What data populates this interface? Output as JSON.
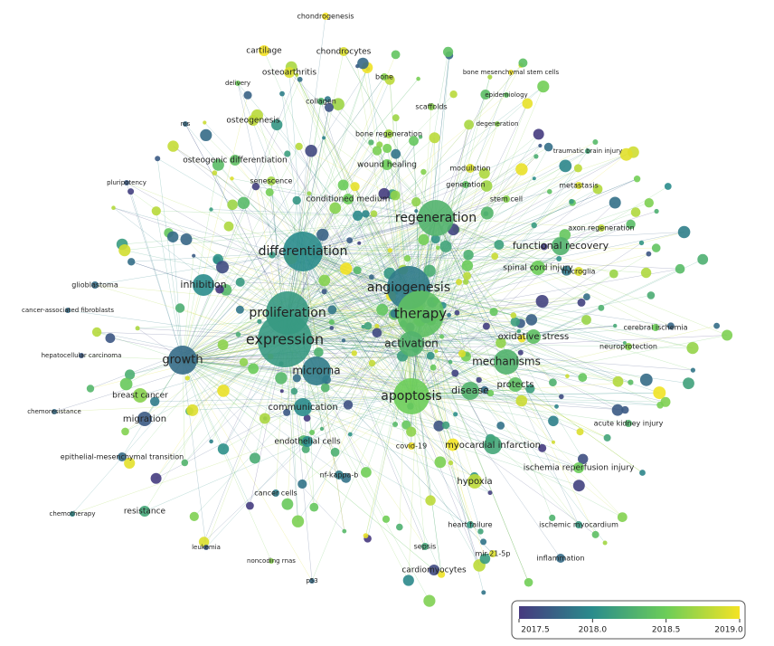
{
  "nodes": [
    {
      "label": "chondrogenesis",
      "year": 2019
    },
    {
      "label": "cartilage",
      "year": 2019
    },
    {
      "label": "chondrocytes",
      "year": 2018.9
    },
    {
      "label": "osteoarthritis",
      "year": 2018.9
    },
    {
      "label": "bone",
      "year": 2018.6
    },
    {
      "label": "bone mesenchymal stem cells",
      "year": 2019
    },
    {
      "label": "delivery",
      "year": 2018.5
    },
    {
      "label": "collagen",
      "year": 2018.3
    },
    {
      "label": "scaffolds",
      "year": 2018.6
    },
    {
      "label": "epidemiology",
      "year": 2018.4
    },
    {
      "label": "osteogenesis",
      "year": 2018.8
    },
    {
      "label": "degeneration",
      "year": 2018.6
    },
    {
      "label": "ros",
      "year": 2017.8
    },
    {
      "label": "bone regeneration",
      "year": 2018.7
    },
    {
      "label": "traumatic brain injury",
      "year": 2018.2
    },
    {
      "label": "osteogenic differentiation",
      "year": 2018.4
    },
    {
      "label": "wound healing",
      "year": 2018.5
    },
    {
      "label": "modulation",
      "year": 2018.9
    },
    {
      "label": "pluripotency",
      "year": 2017.7
    },
    {
      "label": "generation",
      "year": 2018.4
    },
    {
      "label": "metastasis",
      "year": 2018.9
    },
    {
      "label": "conditioned medium",
      "year": 2018.5
    },
    {
      "label": "stem cell",
      "year": 2018.6
    },
    {
      "label": "senescence",
      "year": 2018.7
    },
    {
      "label": "regeneration",
      "year": 2018.3
    },
    {
      "label": "differentiation",
      "year": 2018.0
    },
    {
      "label": "functional recovery",
      "year": 2018.3
    },
    {
      "label": "axon regeneration",
      "year": 2018.8
    },
    {
      "label": "microglia",
      "year": 2018.9
    },
    {
      "label": "spinal cord injury",
      "year": 2018.5
    },
    {
      "label": "angiogenesis",
      "year": 2017.9
    },
    {
      "label": "inhibition",
      "year": 2018.0
    },
    {
      "label": "glioblastoma",
      "year": 2017.8
    },
    {
      "label": "proliferation",
      "year": 2018.1
    },
    {
      "label": "therapy",
      "year": 2018.4
    },
    {
      "label": "expression",
      "year": 2018.1
    },
    {
      "label": "activation",
      "year": 2018.3
    },
    {
      "label": "oxidative stress",
      "year": 2018.4
    },
    {
      "label": "neuroprotection",
      "year": 2018.6
    },
    {
      "label": "cerebral ischemia",
      "year": 2018.5
    },
    {
      "label": "cancer-associated fibroblasts",
      "year": 2017.8
    },
    {
      "label": "hepatocellular carcinoma",
      "year": 2017.7
    },
    {
      "label": "growth",
      "year": 2017.8
    },
    {
      "label": "mechanisms",
      "year": 2018.3
    },
    {
      "label": "microrna",
      "year": 2017.9
    },
    {
      "label": "apoptosis",
      "year": 2018.5
    },
    {
      "label": "disease",
      "year": 2018.3
    },
    {
      "label": "protects",
      "year": 2018.4
    },
    {
      "label": "chemoresistance",
      "year": 2017.8
    },
    {
      "label": "communication",
      "year": 2018.0
    },
    {
      "label": "breast cancer",
      "year": 2018.6
    },
    {
      "label": "myocardial infarction",
      "year": 2018.2
    },
    {
      "label": "migration",
      "year": 2017.7
    },
    {
      "label": "epithelial-mesenchymal transition",
      "year": 2017.8
    },
    {
      "label": "endothelial cells",
      "year": 2018.0
    },
    {
      "label": "ischemia reperfusion injury",
      "year": 2018.5
    },
    {
      "label": "acute kidney injury",
      "year": 2018.3
    },
    {
      "label": "nf-kappa-b",
      "year": 2017.9
    },
    {
      "label": "hypoxia",
      "year": 2018.8
    },
    {
      "label": "cancer cells",
      "year": 2017.9
    },
    {
      "label": "resistance",
      "year": 2018.2
    },
    {
      "label": "chemotherapy",
      "year": 2018.0
    },
    {
      "label": "cardiomyocytes",
      "year": 2017.6
    },
    {
      "label": "mir-21-5p",
      "year": 2018.9
    },
    {
      "label": "inflammation",
      "year": 2017.8
    },
    {
      "label": "leukemia",
      "year": 2017.7
    },
    {
      "label": "noncoding rnas",
      "year": 2018.6
    },
    {
      "label": "p53",
      "year": 2017.8
    },
    {
      "label": "covid-19",
      "year": 2019
    },
    {
      "label": "ischemic myocardium",
      "year": 2018.1
    },
    {
      "label": "heart failure",
      "year": 2018.1
    },
    {
      "label": "sepsis",
      "year": 2018.2
    }
  ],
  "colorbar": {
    "ticks": [
      2017.5,
      {
        "value": 2018,
        "label": "2018.0"
      },
      2018.5,
      {
        "value": 2019,
        "label": "2019.0"
      }
    ],
    "colors": [
      "#46397f",
      "#2a8c8c",
      "#6ccd59",
      "#f4e324"
    ]
  }
}
